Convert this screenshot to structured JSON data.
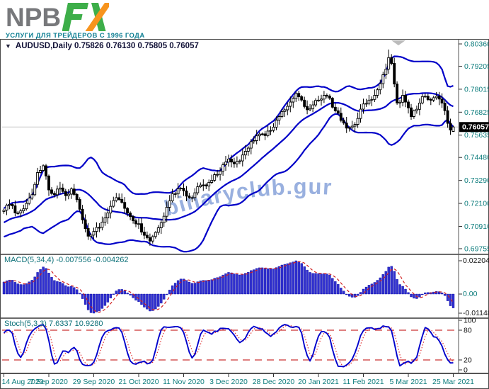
{
  "logo": {
    "text_main": "NPB",
    "text_fx": "FX",
    "tagline": "УСЛУГИ ДЛЯ ТРЕЙДЕРОВ С 1996 ГОДА",
    "color_main": "#77787B",
    "color_green": "#3DAE49",
    "color_orange": "#F7941E",
    "tagline_color": "#0E7F93"
  },
  "watermark": {
    "text": "binaryclub.guru",
    "color": "#8FA8DC"
  },
  "chart": {
    "title_text": "AUDUSD,Daily  0.75826 0.76130 0.75805 0.76057",
    "current_price": "0.76057",
    "price_scale_labels": [
      "0.80360",
      "0.79205",
      "0.78015",
      "0.76825",
      "0.75635",
      "0.74480",
      "0.73290",
      "0.72100",
      "0.70910",
      "0.69755"
    ],
    "axis_text_color": "#0C7C7C",
    "candle_up_color": "#FFFFFF",
    "candle_down_color": "#000000",
    "band_color": "#0000C8",
    "price_line_color": "#C8C8C8"
  },
  "macd": {
    "label": "MACD(5,34,4) -0.007556 -0.004262",
    "scale_max": "0.022042",
    "scale_zero": "0.00",
    "scale_min": "-0.011488"
  },
  "stoch": {
    "label": "Stoch(5,3,3) 7.6337 10.9280",
    "scale_labels": [
      "100",
      "80",
      "20",
      "0"
    ]
  },
  "chart_data": {
    "type": "candlestick",
    "symbol": "AUDUSD",
    "timeframe": "Daily",
    "last_ohlc": {
      "open": 0.75826,
      "high": 0.7613,
      "low": 0.75805,
      "close": 0.76057
    },
    "y_ticks": [
      0.8036,
      0.79205,
      0.78015,
      0.76825,
      0.75635,
      0.7448,
      0.7329,
      0.721,
      0.7091,
      0.69755
    ],
    "x_ticks": {
      "labels": [
        "14 Aug 2020",
        "7 Sep 2020",
        "29 Sep 2020",
        "21 Oct 2020",
        "11 Nov 2020",
        "3 Dec 2020",
        "28 Dec 2020",
        "20 Jan 2021",
        "11 Feb 2021",
        "5 Mar 2021",
        "25 Mar 2021"
      ],
      "bar_indices": [
        0,
        16,
        32,
        48,
        64,
        80,
        96,
        112,
        128,
        144,
        160
      ]
    },
    "bars_visible": 161,
    "preroll": {
      "bars": 34,
      "start_close": 0.698,
      "end_close": 0.7155
    },
    "close_anchors": [
      [
        0,
        0.7175
      ],
      [
        2,
        0.7205
      ],
      [
        5,
        0.716
      ],
      [
        8,
        0.721
      ],
      [
        10,
        0.7255
      ],
      [
        12,
        0.737
      ],
      [
        14,
        0.7405
      ],
      [
        16,
        0.728
      ],
      [
        18,
        0.7255
      ],
      [
        20,
        0.729
      ],
      [
        22,
        0.725
      ],
      [
        24,
        0.7285
      ],
      [
        26,
        0.723
      ],
      [
        28,
        0.7125
      ],
      [
        30,
        0.704
      ],
      [
        32,
        0.7065
      ],
      [
        34,
        0.7085
      ],
      [
        36,
        0.7135
      ],
      [
        38,
        0.7195
      ],
      [
        40,
        0.724
      ],
      [
        42,
        0.7215
      ],
      [
        44,
        0.716
      ],
      [
        46,
        0.712
      ],
      [
        48,
        0.7105
      ],
      [
        50,
        0.7045
      ],
      [
        52,
        0.7015
      ],
      [
        54,
        0.706
      ],
      [
        56,
        0.711
      ],
      [
        58,
        0.719
      ],
      [
        60,
        0.726
      ],
      [
        62,
        0.7285
      ],
      [
        64,
        0.7275
      ],
      [
        66,
        0.724
      ],
      [
        68,
        0.7265
      ],
      [
        70,
        0.7305
      ],
      [
        72,
        0.73
      ],
      [
        74,
        0.733
      ],
      [
        76,
        0.736
      ],
      [
        78,
        0.741
      ],
      [
        80,
        0.744
      ],
      [
        82,
        0.7415
      ],
      [
        84,
        0.743
      ],
      [
        86,
        0.748
      ],
      [
        88,
        0.753
      ],
      [
        90,
        0.756
      ],
      [
        92,
        0.757
      ],
      [
        94,
        0.7585
      ],
      [
        96,
        0.7605
      ],
      [
        98,
        0.766
      ],
      [
        100,
        0.7695
      ],
      [
        102,
        0.7735
      ],
      [
        104,
        0.778
      ],
      [
        106,
        0.7745
      ],
      [
        108,
        0.7695
      ],
      [
        110,
        0.772
      ],
      [
        112,
        0.7745
      ],
      [
        114,
        0.777
      ],
      [
        116,
        0.7755
      ],
      [
        118,
        0.769
      ],
      [
        120,
        0.764
      ],
      [
        122,
        0.76
      ],
      [
        124,
        0.761
      ],
      [
        126,
        0.765
      ],
      [
        128,
        0.7725
      ],
      [
        130,
        0.7745
      ],
      [
        132,
        0.777
      ],
      [
        134,
        0.783
      ],
      [
        136,
        0.7905
      ],
      [
        137,
        0.7965
      ],
      [
        138,
        0.7935
      ],
      [
        140,
        0.773
      ],
      [
        142,
        0.777
      ],
      [
        144,
        0.7705
      ],
      [
        145,
        0.766
      ],
      [
        146,
        0.769
      ],
      [
        148,
        0.773
      ],
      [
        150,
        0.7765
      ],
      [
        152,
        0.7745
      ],
      [
        154,
        0.7765
      ],
      [
        156,
        0.773
      ],
      [
        158,
        0.7625
      ],
      [
        159,
        0.759
      ],
      [
        160,
        0.76057
      ]
    ],
    "extremes": {
      "highest": {
        "index": 137,
        "price": 0.8007
      },
      "lowest": {
        "index": 52,
        "price": 0.6991
      }
    },
    "indicators": [
      {
        "type": "bollinger",
        "period": 20,
        "deviation": 2,
        "color": "#0000C8"
      },
      {
        "type": "macd",
        "fast": 5,
        "slow": 34,
        "signal": 4,
        "current": -0.007556,
        "current_signal": -0.004262,
        "scale": {
          "max": 0.022042,
          "zero": 0.0,
          "min": -0.011488
        },
        "histogram_color": "#3030CF",
        "signal_color": "#D02020"
      },
      {
        "type": "stochastic",
        "k": 5,
        "d": 3,
        "slowing": 3,
        "current_k": 7.6337,
        "current_d": 10.928,
        "levels": [
          80,
          20
        ],
        "main_color": "#0000CC",
        "signal_color": "#E03030",
        "level_color": "#CC3333"
      }
    ]
  }
}
